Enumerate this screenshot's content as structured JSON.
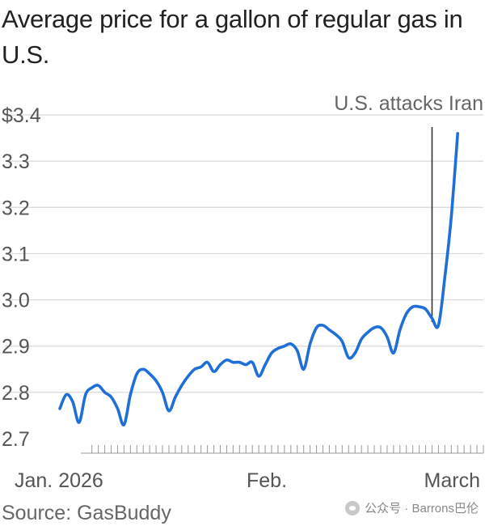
{
  "title": "Average price for a gallon of regular gas in U.S.",
  "source": "Source: GasBuddy",
  "watermark": "公众号 · Barrons巴伦",
  "colors": {
    "line": "#1f6fd6",
    "grid": "#d9d9d9",
    "annotation": "#333333"
  },
  "chart_data": {
    "type": "line",
    "title": "Average price for a gallon of regular gas in U.S.",
    "xlabel": "",
    "ylabel": "",
    "ylim": [
      2.7,
      3.4
    ],
    "yticks": [
      2.7,
      2.8,
      2.9,
      3.0,
      3.1,
      3.2,
      3.3,
      3.4
    ],
    "ytick_labels": [
      "2.7",
      "2.8",
      "2.9",
      "3.0",
      "3.1",
      "3.2",
      "3.3",
      "$3.4"
    ],
    "xlim": [
      "2026-01-01",
      "2026-03-08"
    ],
    "xtick_labels": [
      {
        "date": "2026-01-01",
        "label": "Jan. 2026"
      },
      {
        "date": "2026-02-01",
        "label": "Feb."
      },
      {
        "date": "2026-03-01",
        "label": "March"
      }
    ],
    "annotation": {
      "date": "2026-02-28",
      "label": "U.S. attacks Iran"
    },
    "grid": true,
    "series": [
      {
        "x": [
          "2026-01-01",
          "2026-01-02",
          "2026-01-03",
          "2026-01-04",
          "2026-01-05",
          "2026-01-06",
          "2026-01-07",
          "2026-01-08",
          "2026-01-09",
          "2026-01-10",
          "2026-01-11",
          "2026-01-12",
          "2026-01-13",
          "2026-01-14",
          "2026-01-15",
          "2026-01-16",
          "2026-01-17",
          "2026-01-18",
          "2026-01-19",
          "2026-01-20",
          "2026-01-21",
          "2026-01-22",
          "2026-01-23",
          "2026-01-24",
          "2026-01-25",
          "2026-01-26",
          "2026-01-27",
          "2026-01-28",
          "2026-01-29",
          "2026-01-30",
          "2026-01-31",
          "2026-02-01",
          "2026-02-02",
          "2026-02-03",
          "2026-02-04",
          "2026-02-05",
          "2026-02-06",
          "2026-02-07",
          "2026-02-08",
          "2026-02-09",
          "2026-02-10",
          "2026-02-11",
          "2026-02-12",
          "2026-02-13",
          "2026-02-14",
          "2026-02-15",
          "2026-02-16",
          "2026-02-17",
          "2026-02-18",
          "2026-02-19",
          "2026-02-20",
          "2026-02-21",
          "2026-02-22",
          "2026-02-23",
          "2026-02-24",
          "2026-02-25",
          "2026-02-26",
          "2026-02-27",
          "2026-02-28",
          "2026-03-01",
          "2026-03-02",
          "2026-03-03",
          "2026-03-04"
        ],
        "values": [
          2.765,
          2.795,
          2.78,
          2.735,
          2.795,
          2.81,
          2.815,
          2.8,
          2.79,
          2.765,
          2.73,
          2.795,
          2.84,
          2.85,
          2.84,
          2.825,
          2.8,
          2.76,
          2.79,
          2.815,
          2.835,
          2.85,
          2.855,
          2.865,
          2.845,
          2.86,
          2.87,
          2.865,
          2.865,
          2.86,
          2.865,
          2.835,
          2.86,
          2.885,
          2.895,
          2.9,
          2.905,
          2.89,
          2.85,
          2.905,
          2.94,
          2.945,
          2.935,
          2.925,
          2.91,
          2.875,
          2.885,
          2.915,
          2.93,
          2.94,
          2.94,
          2.92,
          2.885,
          2.935,
          2.97,
          2.985,
          2.985,
          2.98,
          2.96,
          2.945,
          3.05,
          3.18,
          3.36
        ]
      }
    ]
  }
}
